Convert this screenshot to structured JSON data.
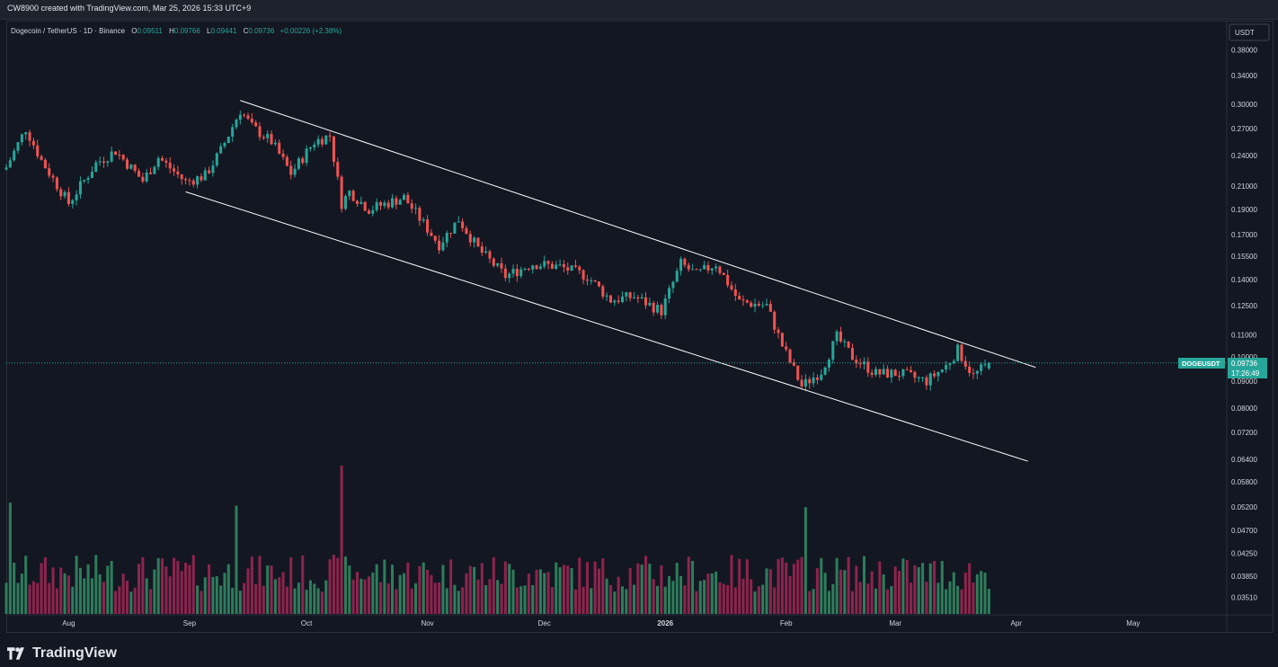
{
  "header": {
    "attribution": "CW8900 created with TradingView.com, Mar 25, 2026 15:33 UTC+9"
  },
  "legend": {
    "symbol": "Dogecoin / TetherUS · 1D · Binance",
    "o_label": "O",
    "o": "0.09511",
    "h_label": "H",
    "h": "0.09766",
    "l_label": "L",
    "l": "0.09441",
    "c_label": "C",
    "c": "0.09736",
    "change": "+0.00226 (+2.38%)"
  },
  "price_tag": {
    "symbol": "DOGEUSDT",
    "price": "0.09736",
    "countdown": "17:26:49"
  },
  "footer": {
    "brand": "TradingView"
  },
  "colors": {
    "bg": "#131722",
    "up": "#26a69a",
    "down": "#ef5350",
    "vol_up": "#2e7d5b",
    "vol_down": "#8e244d",
    "line": "#ffffff",
    "grid": "#2a2e39"
  },
  "chart_data": {
    "type": "candlestick",
    "title": "Dogecoin / TetherUS · 1D · Binance",
    "y_axis": {
      "currency": "USDT",
      "scale": "log",
      "range": [
        0.0335,
        0.42
      ],
      "ticks": [
        "0.38000",
        "0.34000",
        "0.30000",
        "0.27000",
        "0.24000",
        "0.21000",
        "0.19000",
        "0.17000",
        "0.15500",
        "0.14000",
        "0.12500",
        "0.11000",
        "0.10000",
        "0.09000",
        "0.08000",
        "0.07200",
        "0.06400",
        "0.05800",
        "0.05200",
        "0.04700",
        "0.04250",
        "0.03850",
        "0.03510"
      ]
    },
    "x_axis": {
      "ticks": [
        "Aug",
        "Sep",
        "Oct",
        "Nov",
        "Dec",
        "2026",
        "Feb",
        "Mar",
        "Apr",
        "May"
      ],
      "range": [
        "2025-07-16",
        "2026-05-25"
      ]
    },
    "grid": false,
    "last_price": 0.09736,
    "channel": {
      "upper": [
        {
          "date": "2025-09-14",
          "price": 0.305
        },
        {
          "date": "2026-04-06",
          "price": 0.0955
        }
      ],
      "lower": [
        {
          "date": "2025-08-31",
          "price": 0.205
        },
        {
          "date": "2026-04-04",
          "price": 0.0635
        }
      ]
    },
    "anchors": [
      {
        "date": "2025-07-16",
        "close": 0.228
      },
      {
        "date": "2025-07-21",
        "close": 0.27
      },
      {
        "date": "2025-07-25",
        "close": 0.235
      },
      {
        "date": "2025-08-01",
        "close": 0.195
      },
      {
        "date": "2025-08-08",
        "close": 0.232
      },
      {
        "date": "2025-08-13",
        "close": 0.245
      },
      {
        "date": "2025-08-20",
        "close": 0.215
      },
      {
        "date": "2025-08-24",
        "close": 0.238
      },
      {
        "date": "2025-08-31",
        "close": 0.214
      },
      {
        "date": "2025-09-05",
        "close": 0.22
      },
      {
        "date": "2025-09-09",
        "close": 0.245
      },
      {
        "date": "2025-09-14",
        "close": 0.292
      },
      {
        "date": "2025-09-17",
        "close": 0.272
      },
      {
        "date": "2025-09-22",
        "close": 0.255
      },
      {
        "date": "2025-09-27",
        "close": 0.222
      },
      {
        "date": "2025-10-03",
        "close": 0.255
      },
      {
        "date": "2025-10-07",
        "close": 0.262
      },
      {
        "date": "2025-10-10",
        "close": 0.195
      },
      {
        "date": "2025-10-12",
        "close": 0.205
      },
      {
        "date": "2025-10-17",
        "close": 0.19
      },
      {
        "date": "2025-10-26",
        "close": 0.2
      },
      {
        "date": "2025-11-04",
        "close": 0.163
      },
      {
        "date": "2025-11-09",
        "close": 0.182
      },
      {
        "date": "2025-11-14",
        "close": 0.16
      },
      {
        "date": "2025-11-21",
        "close": 0.142
      },
      {
        "date": "2025-11-28",
        "close": 0.15
      },
      {
        "date": "2025-12-05",
        "close": 0.148
      },
      {
        "date": "2025-12-12",
        "close": 0.142
      },
      {
        "date": "2025-12-18",
        "close": 0.128
      },
      {
        "date": "2025-12-24",
        "close": 0.13
      },
      {
        "date": "2025-12-31",
        "close": 0.122
      },
      {
        "date": "2026-01-05",
        "close": 0.15
      },
      {
        "date": "2026-01-09",
        "close": 0.143
      },
      {
        "date": "2026-01-14",
        "close": 0.15
      },
      {
        "date": "2026-01-20",
        "close": 0.127
      },
      {
        "date": "2026-01-27",
        "close": 0.125
      },
      {
        "date": "2026-01-31",
        "close": 0.105
      },
      {
        "date": "2026-02-05",
        "close": 0.088
      },
      {
        "date": "2026-02-10",
        "close": 0.094
      },
      {
        "date": "2026-02-14",
        "close": 0.109
      },
      {
        "date": "2026-02-18",
        "close": 0.1
      },
      {
        "date": "2026-02-24",
        "close": 0.093
      },
      {
        "date": "2026-03-02",
        "close": 0.093
      },
      {
        "date": "2026-03-09",
        "close": 0.09
      },
      {
        "date": "2026-03-14",
        "close": 0.096
      },
      {
        "date": "2026-03-17",
        "close": 0.103
      },
      {
        "date": "2026-03-21",
        "close": 0.092
      },
      {
        "date": "2026-03-25",
        "close": 0.09736
      }
    ],
    "volume_spikes": [
      {
        "date": "2025-10-10",
        "relative": 1.0
      },
      {
        "date": "2025-09-13",
        "relative": 0.73
      },
      {
        "date": "2026-02-06",
        "relative": 0.72
      },
      {
        "date": "2025-07-17",
        "relative": 0.75
      }
    ]
  }
}
